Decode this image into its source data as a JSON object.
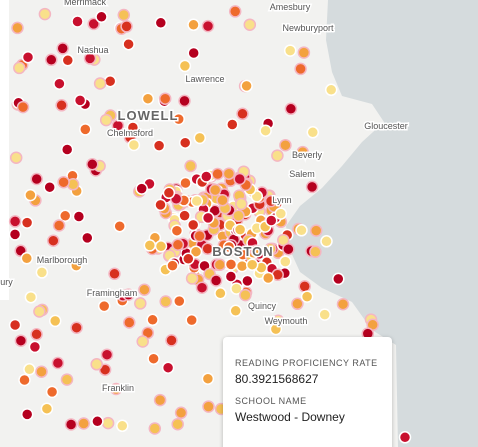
{
  "places": [
    {
      "label": "Merrimack"
    },
    {
      "label": "Amesbury"
    },
    {
      "label": "Newburyport"
    },
    {
      "label": "Nashua"
    },
    {
      "label": "Lawrence"
    },
    {
      "label": "LOWELL"
    },
    {
      "label": "Chelmsford"
    },
    {
      "label": "Gloucester"
    },
    {
      "label": "Beverly"
    },
    {
      "label": "Salem"
    },
    {
      "label": "Lynn"
    },
    {
      "label": "Marlborough"
    },
    {
      "label": "BOSTON"
    },
    {
      "label": "Framingham"
    },
    {
      "label": "Quincy"
    },
    {
      "label": "Weymouth"
    },
    {
      "label": "Franklin"
    },
    {
      "label": "bury"
    }
  ],
  "tooltip": {
    "fields": [
      {
        "label": "READING PROFICIENCY RATE",
        "value": "80.3921568627"
      },
      {
        "label": "SCHOOL NAME",
        "value": "Westwood - Downey"
      }
    ]
  }
}
